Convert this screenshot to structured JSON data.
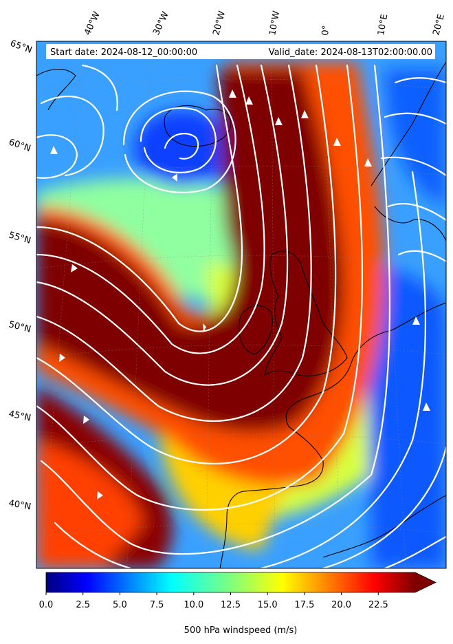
{
  "map": {
    "start_date_text": "Start date: 2024-08-12_00:00:00",
    "valid_date_text": "Valid_date: 2024-08-13T02:00:00.00",
    "lon_labels": [
      "40°W",
      "30°W",
      "20°W",
      "10°W",
      "0°",
      "10°E",
      "20°E"
    ],
    "lat_labels": [
      "65°N",
      "60°N",
      "55°N",
      "50°N",
      "45°N",
      "40°N"
    ],
    "field": "windspeed",
    "streamline_color": "#ffffff",
    "coastline_color": "#000000"
  },
  "colorbar": {
    "label": "500 hPa windspeed (m/s)",
    "ticks": [
      "0.0",
      "2.5",
      "5.0",
      "7.5",
      "10.0",
      "12.5",
      "15.0",
      "17.5",
      "20.0",
      "22.5"
    ],
    "min": 0,
    "max": 25,
    "extend": "max",
    "colormap": "jet",
    "colors": [
      "#00007f",
      "#0000ff",
      "#007fff",
      "#00ffff",
      "#7fff7f",
      "#ffff00",
      "#ff7f00",
      "#ff0000",
      "#7f0000"
    ]
  }
}
